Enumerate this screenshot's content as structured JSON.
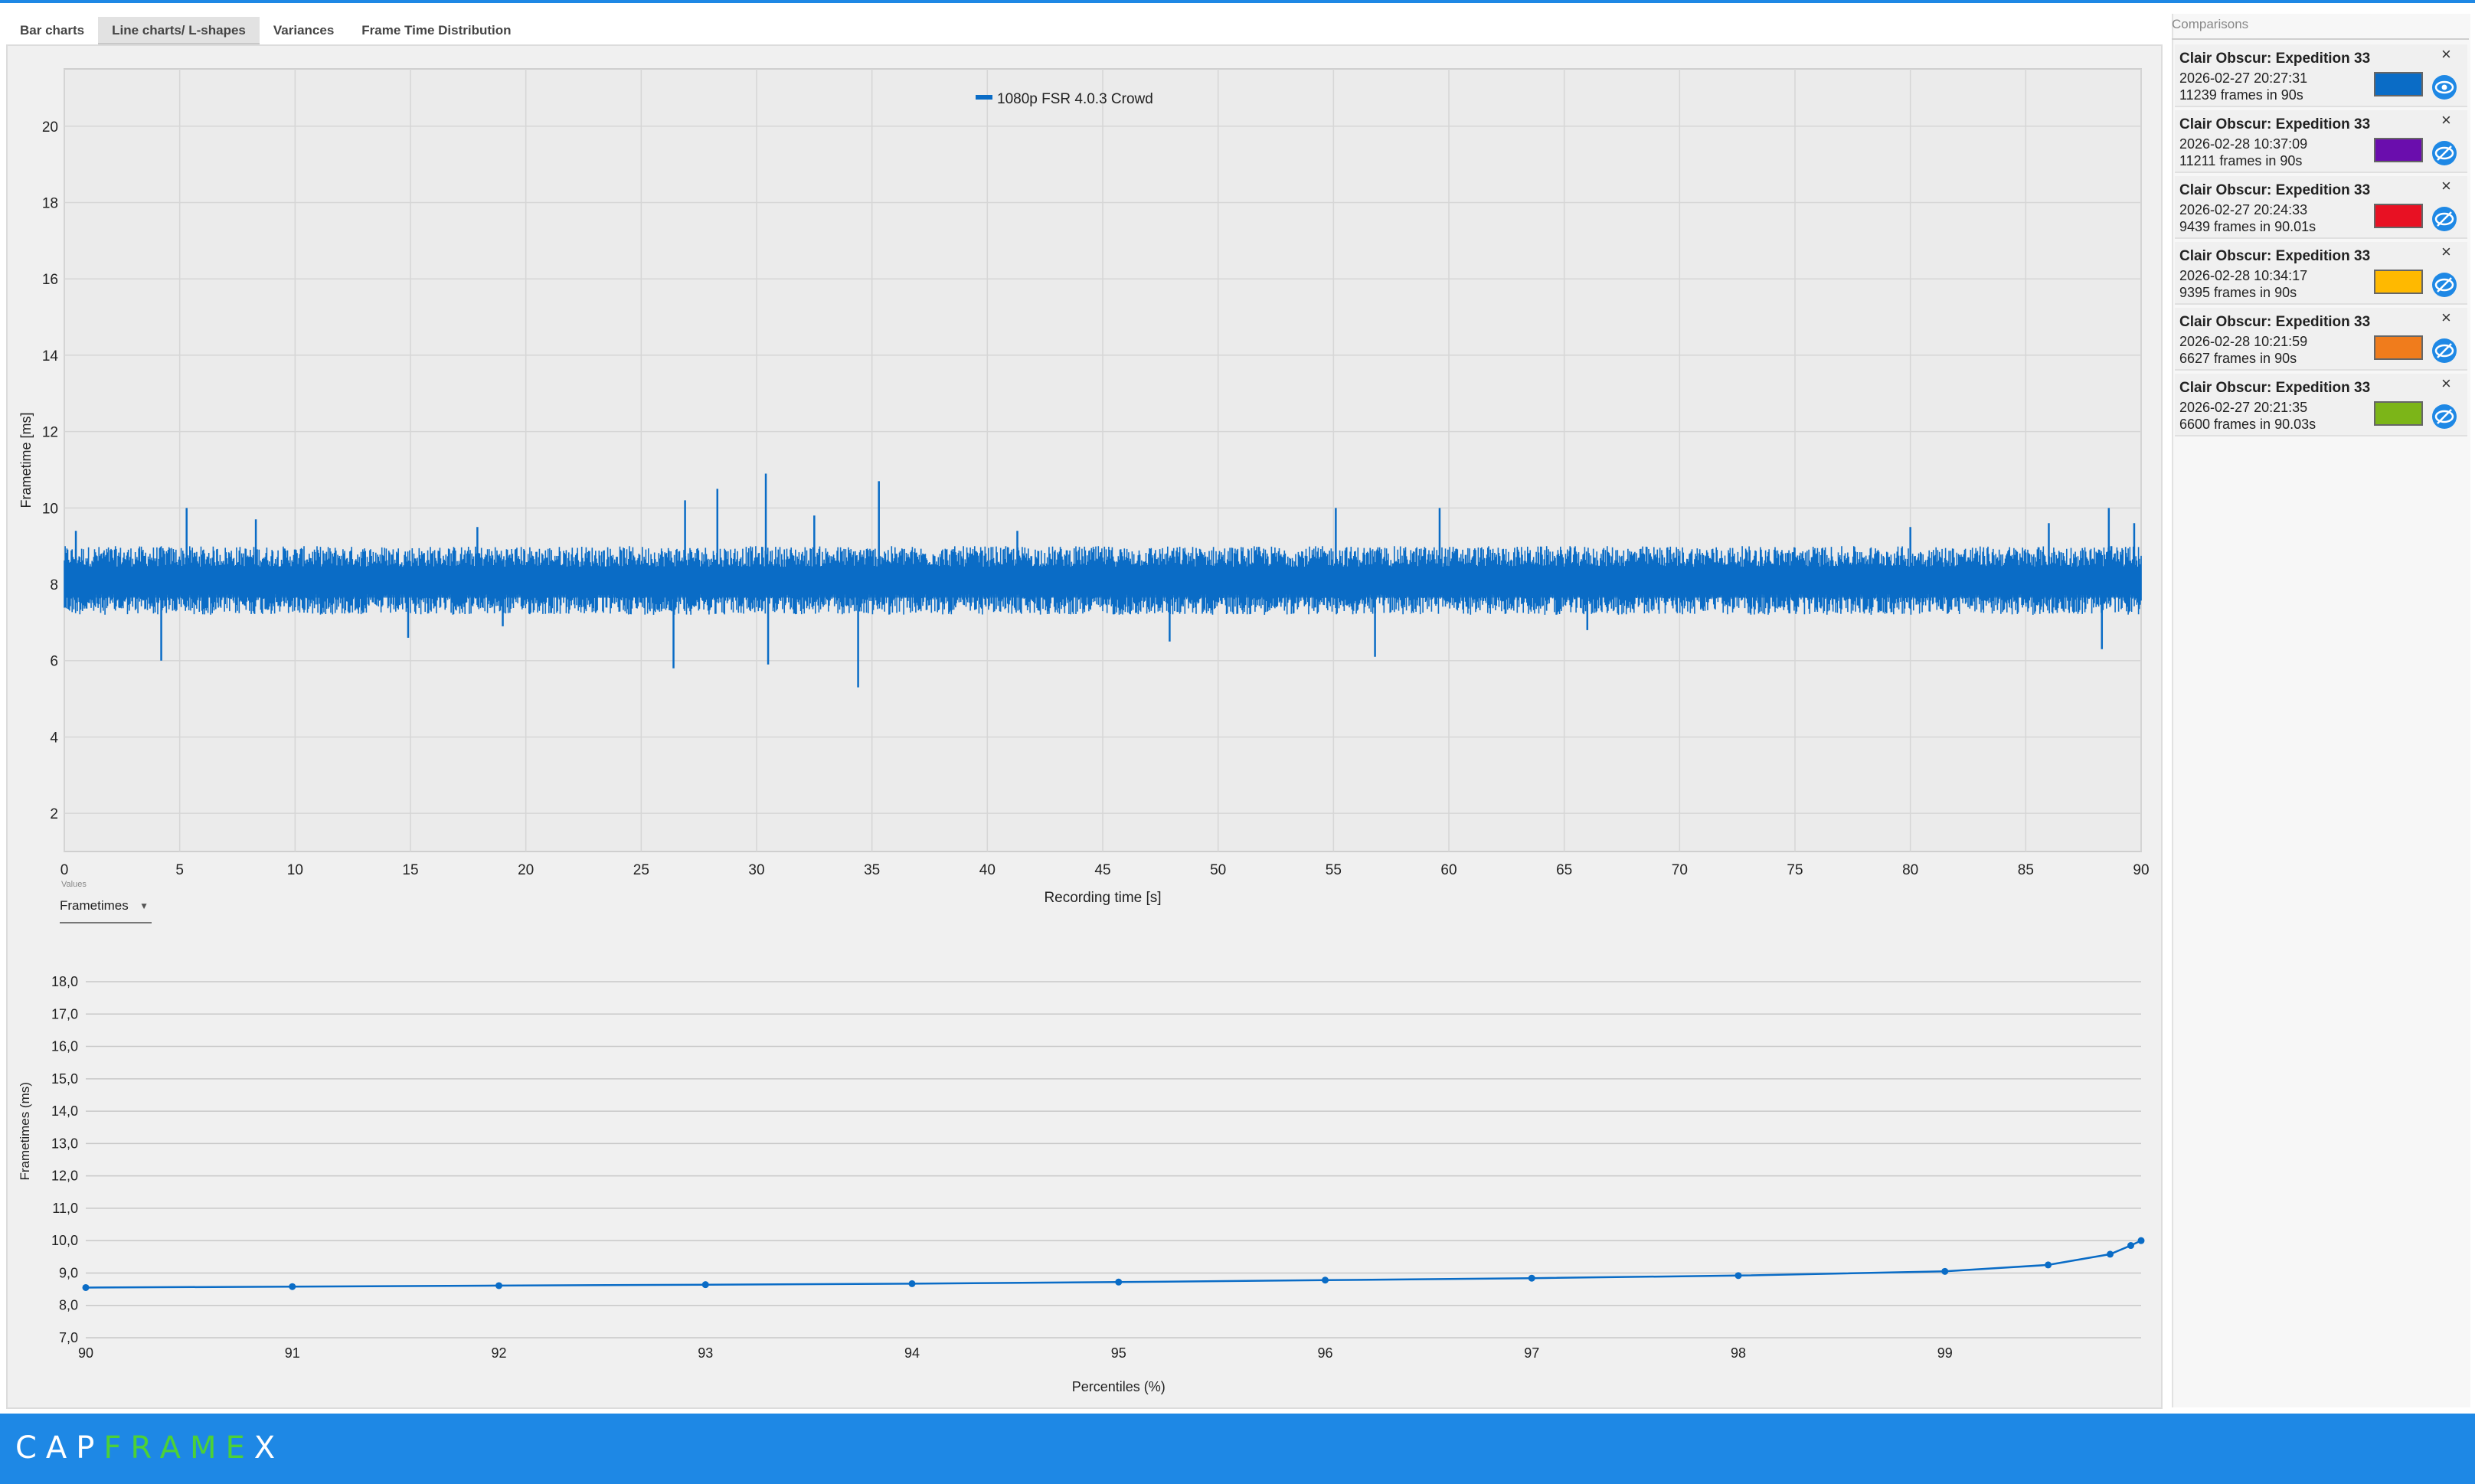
{
  "tabs": [
    {
      "label": "Bar charts"
    },
    {
      "label": "Line charts/ L-shapes"
    },
    {
      "label": "Variances"
    },
    {
      "label": "Frame Time Distribution"
    }
  ],
  "values_caption": "Values",
  "values_dropdown": "Frametimes",
  "comparisons": {
    "title": "Comparisons",
    "items": [
      {
        "title": "Clair Obscur: Expedition 33",
        "date": "2026-02-27 20:27:31",
        "frames": "11239 frames in 90s",
        "color": "#0a6cc6"
      },
      {
        "title": "Clair Obscur: Expedition 33",
        "date": "2026-02-28 10:37:09",
        "frames": "11211 frames in 90s",
        "color": "#6a0dad"
      },
      {
        "title": "Clair Obscur: Expedition 33",
        "date": "2026-02-27 20:24:33",
        "frames": "9439 frames in 90.01s",
        "color": "#e81123"
      },
      {
        "title": "Clair Obscur: Expedition 33",
        "date": "2026-02-28 10:34:17",
        "frames": "9395 frames in 90s",
        "color": "#ffb900"
      },
      {
        "title": "Clair Obscur: Expedition 33",
        "date": "2026-02-28 10:21:59",
        "frames": "6627 frames in 90s",
        "color": "#f07c1c"
      },
      {
        "title": "Clair Obscur: Expedition 33",
        "date": "2026-02-27 20:21:35",
        "frames": "6600 frames in 90.03s",
        "color": "#7cb518"
      }
    ]
  },
  "logo": {
    "a": "CAP",
    "b": "FRAME",
    "c": "X"
  },
  "chart_data": [
    {
      "type": "line",
      "legend": "1080p FSR 4.0.3 Crowd",
      "xlabel": "Recording time [s]",
      "ylabel": "Frametime [ms]",
      "xlim": [
        0,
        90
      ],
      "ylim": [
        1,
        21.5
      ],
      "xticks": [
        0,
        5,
        10,
        15,
        20,
        25,
        30,
        35,
        40,
        45,
        50,
        55,
        60,
        65,
        70,
        75,
        80,
        85,
        90
      ],
      "yticks": [
        2,
        4,
        6,
        8,
        10,
        12,
        14,
        16,
        18,
        20
      ],
      "color": "#0a6cc6",
      "grid": true,
      "legend_position": "top-center",
      "baseline_ms": 8.1,
      "band_ms": [
        7.2,
        9.0
      ],
      "spikes": [
        {
          "x": 0.5,
          "y": 9.4
        },
        {
          "x": 4.2,
          "y": 6.0
        },
        {
          "x": 5.3,
          "y": 10.0
        },
        {
          "x": 8.3,
          "y": 9.7
        },
        {
          "x": 14.9,
          "y": 6.6
        },
        {
          "x": 17.9,
          "y": 9.5
        },
        {
          "x": 19.0,
          "y": 6.9
        },
        {
          "x": 26.9,
          "y": 10.2
        },
        {
          "x": 26.4,
          "y": 5.8
        },
        {
          "x": 28.3,
          "y": 10.5
        },
        {
          "x": 30.4,
          "y": 10.9
        },
        {
          "x": 30.5,
          "y": 5.9
        },
        {
          "x": 32.5,
          "y": 9.8
        },
        {
          "x": 34.4,
          "y": 5.3
        },
        {
          "x": 35.3,
          "y": 10.7
        },
        {
          "x": 41.3,
          "y": 9.4
        },
        {
          "x": 47.9,
          "y": 6.5
        },
        {
          "x": 55.1,
          "y": 10.0
        },
        {
          "x": 56.8,
          "y": 6.1
        },
        {
          "x": 59.6,
          "y": 10.0
        },
        {
          "x": 66.0,
          "y": 6.8
        },
        {
          "x": 80.0,
          "y": 9.5
        },
        {
          "x": 86.0,
          "y": 9.6
        },
        {
          "x": 88.3,
          "y": 6.3
        },
        {
          "x": 88.6,
          "y": 10.0
        },
        {
          "x": 89.7,
          "y": 9.6
        }
      ]
    },
    {
      "type": "line",
      "xlabel": "Percentiles (%)",
      "ylabel": "Frametimes (ms)",
      "xlim": [
        90,
        99.95
      ],
      "ylim": [
        7.0,
        18.0
      ],
      "xticks": [
        90,
        91,
        92,
        93,
        94,
        95,
        96,
        97,
        98,
        99
      ],
      "yticks": [
        7.0,
        8.0,
        9.0,
        10.0,
        11.0,
        12.0,
        13.0,
        14.0,
        15.0,
        16.0,
        17.0,
        18.0
      ],
      "ytick_labels": [
        "7,0",
        "8,0",
        "9,0",
        "10,0",
        "11,0",
        "12,0",
        "13,0",
        "14,0",
        "15,0",
        "16,0",
        "17,0",
        "18,0"
      ],
      "color": "#0a6cc6",
      "grid": true,
      "x": [
        90,
        91,
        92,
        93,
        94,
        95,
        96,
        97,
        98,
        99,
        99.5,
        99.8,
        99.9,
        99.95
      ],
      "y": [
        8.55,
        8.58,
        8.61,
        8.64,
        8.67,
        8.72,
        8.78,
        8.84,
        8.92,
        9.05,
        9.25,
        9.58,
        9.85,
        10.0
      ]
    }
  ]
}
